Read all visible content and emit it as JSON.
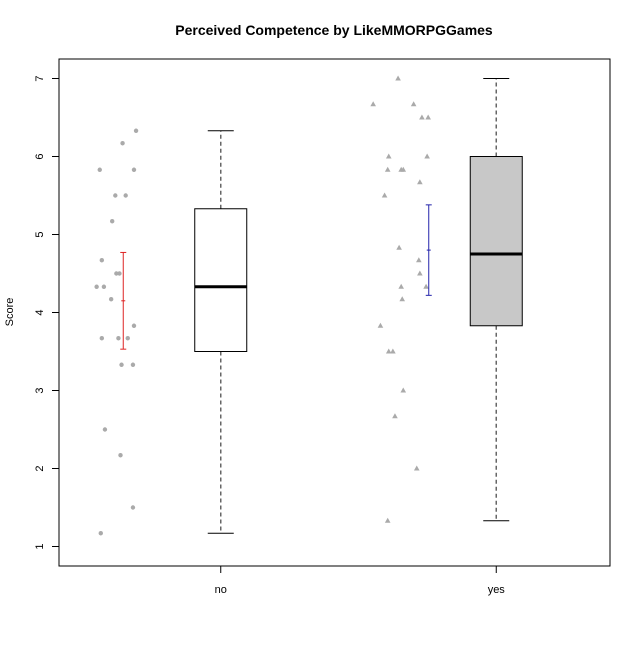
{
  "chart_data": {
    "type": "box",
    "title": "Perceived Competence by LikeMMORPGGames",
    "xlabel": "",
    "ylabel": "Score",
    "ylim": [
      0.75,
      7.25
    ],
    "yticks": [
      "1",
      "2",
      "3",
      "4",
      "5",
      "6",
      "7"
    ],
    "categories": [
      "no",
      "yes"
    ],
    "boxes": [
      {
        "category": "no",
        "min": 1.17,
        "q1": 3.5,
        "median": 4.33,
        "q3": 5.33,
        "max": 6.33,
        "box_fill": "#ffffff",
        "ci": {
          "mean": 4.15,
          "low": 3.53,
          "high": 4.77,
          "color": "#dd2222"
        },
        "points": [
          {
            "x": 0.2,
            "y": 5.83
          },
          {
            "x": 0.42,
            "y": 6.17
          },
          {
            "x": 0.55,
            "y": 6.33
          },
          {
            "x": 0.53,
            "y": 5.83
          },
          {
            "x": 0.35,
            "y": 5.5
          },
          {
            "x": 0.45,
            "y": 5.5
          },
          {
            "x": 0.32,
            "y": 5.17
          },
          {
            "x": 0.22,
            "y": 4.67
          },
          {
            "x": 0.36,
            "y": 4.5
          },
          {
            "x": 0.39,
            "y": 4.5
          },
          {
            "x": 0.17,
            "y": 4.33
          },
          {
            "x": 0.24,
            "y": 4.33
          },
          {
            "x": 0.31,
            "y": 4.17
          },
          {
            "x": 0.53,
            "y": 3.83
          },
          {
            "x": 0.22,
            "y": 3.67
          },
          {
            "x": 0.38,
            "y": 3.67
          },
          {
            "x": 0.47,
            "y": 3.67
          },
          {
            "x": 0.41,
            "y": 3.33
          },
          {
            "x": 0.52,
            "y": 3.33
          },
          {
            "x": 0.25,
            "y": 2.5
          },
          {
            "x": 0.4,
            "y": 2.17
          },
          {
            "x": 0.52,
            "y": 1.5
          },
          {
            "x": 0.21,
            "y": 1.17
          }
        ]
      },
      {
        "category": "yes",
        "min": 1.33,
        "q1": 3.83,
        "median": 4.75,
        "q3": 6.0,
        "max": 7.0,
        "box_fill": "#c8c8c8",
        "ci": {
          "mean": 4.8,
          "low": 4.22,
          "high": 5.38,
          "color": "#2222aa"
        },
        "points": [
          {
            "x": 0.42,
            "y": 7.0
          },
          {
            "x": 0.18,
            "y": 6.67
          },
          {
            "x": 0.57,
            "y": 6.67
          },
          {
            "x": 0.65,
            "y": 6.5
          },
          {
            "x": 0.71,
            "y": 6.5
          },
          {
            "x": 0.33,
            "y": 6.0
          },
          {
            "x": 0.7,
            "y": 6.0
          },
          {
            "x": 0.32,
            "y": 5.83
          },
          {
            "x": 0.45,
            "y": 5.83
          },
          {
            "x": 0.47,
            "y": 5.83
          },
          {
            "x": 0.63,
            "y": 5.67
          },
          {
            "x": 0.29,
            "y": 5.5
          },
          {
            "x": 0.43,
            "y": 4.83
          },
          {
            "x": 0.62,
            "y": 4.67
          },
          {
            "x": 0.63,
            "y": 4.5
          },
          {
            "x": 0.45,
            "y": 4.33
          },
          {
            "x": 0.69,
            "y": 4.33
          },
          {
            "x": 0.46,
            "y": 4.17
          },
          {
            "x": 0.25,
            "y": 3.83
          },
          {
            "x": 0.33,
            "y": 3.5
          },
          {
            "x": 0.37,
            "y": 3.5
          },
          {
            "x": 0.47,
            "y": 3.0
          },
          {
            "x": 0.39,
            "y": 2.67
          },
          {
            "x": 0.6,
            "y": 2.0
          },
          {
            "x": 0.32,
            "y": 1.33
          }
        ]
      }
    ],
    "point_color": "#aaaaaa",
    "grid": false,
    "legend": "none"
  }
}
